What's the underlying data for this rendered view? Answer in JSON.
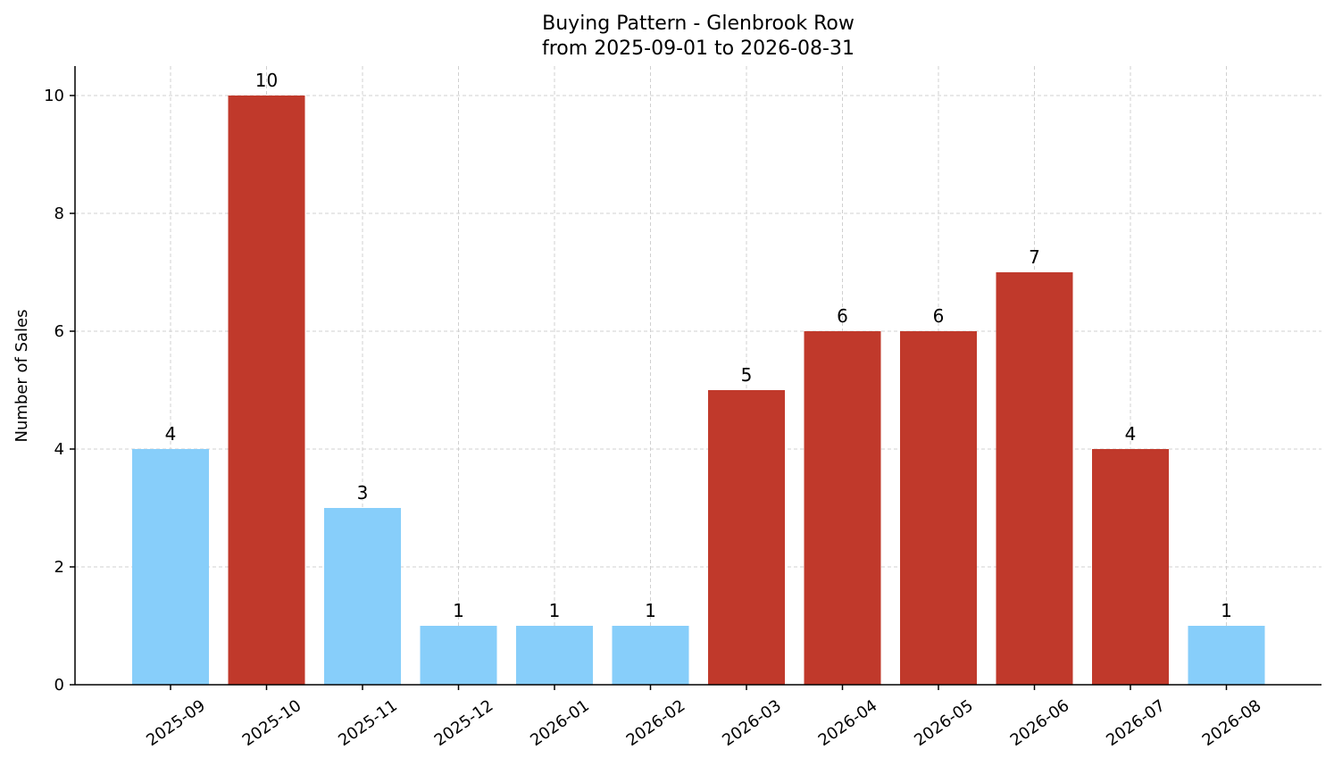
{
  "chart_data": {
    "type": "bar",
    "title": "Buying Pattern - Glenbrook Row",
    "subtitle": "from 2025-09-01 to 2026-08-31",
    "xlabel": "",
    "ylabel": "Number of Sales",
    "categories": [
      "2025-09",
      "2025-10",
      "2025-11",
      "2025-12",
      "2026-01",
      "2026-02",
      "2026-03",
      "2026-04",
      "2026-05",
      "2026-06",
      "2026-07",
      "2026-08"
    ],
    "values": [
      4,
      10,
      3,
      1,
      1,
      1,
      5,
      6,
      6,
      7,
      4,
      1
    ],
    "bar_colors": [
      "#87cefa",
      "#c0392b",
      "#87cefa",
      "#87cefa",
      "#87cefa",
      "#87cefa",
      "#c0392b",
      "#c0392b",
      "#c0392b",
      "#c0392b",
      "#c0392b",
      "#87cefa"
    ],
    "ylim": [
      0,
      10.5
    ],
    "yticks": [
      0,
      2,
      4,
      6,
      8,
      10
    ],
    "grid": true,
    "data_labels": true
  }
}
